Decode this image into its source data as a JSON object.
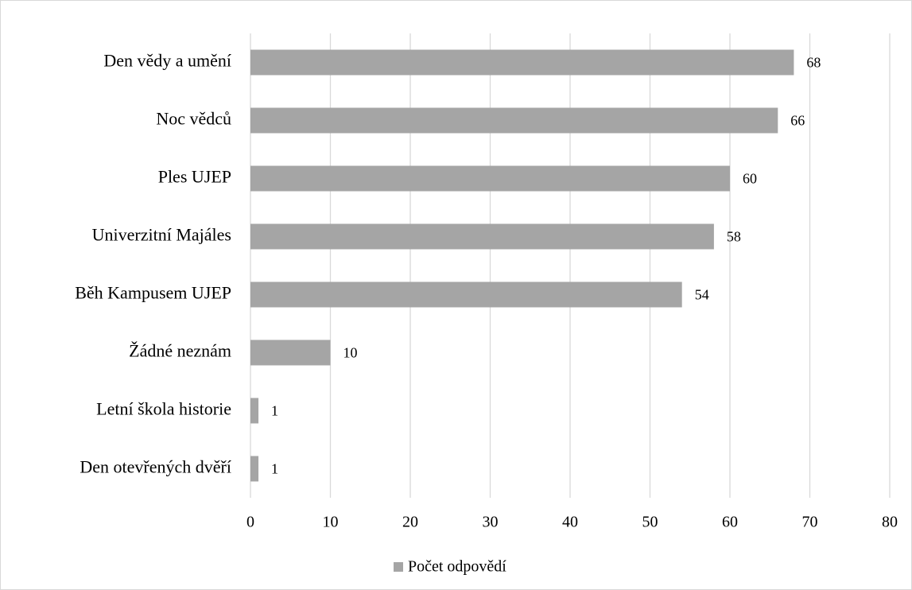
{
  "chart_data": {
    "type": "bar",
    "orientation": "horizontal",
    "categories": [
      "Den vědy a umění",
      "Noc vědců",
      "Ples UJEP",
      "Univerzitní Majáles",
      "Běh Kampusem UJEP",
      "Žádné neznám",
      "Letní škola historie",
      "Den otevřených dvěří"
    ],
    "series": [
      {
        "name": "Počet odpovědí",
        "color": "#a5a5a5",
        "values": [
          68,
          66,
          60,
          58,
          54,
          10,
          1,
          1
        ]
      }
    ],
    "xlim": [
      0,
      80
    ],
    "xticks": [
      0,
      10,
      20,
      30,
      40,
      50,
      60,
      70,
      80
    ],
    "grid": true,
    "legend": "bottom"
  }
}
